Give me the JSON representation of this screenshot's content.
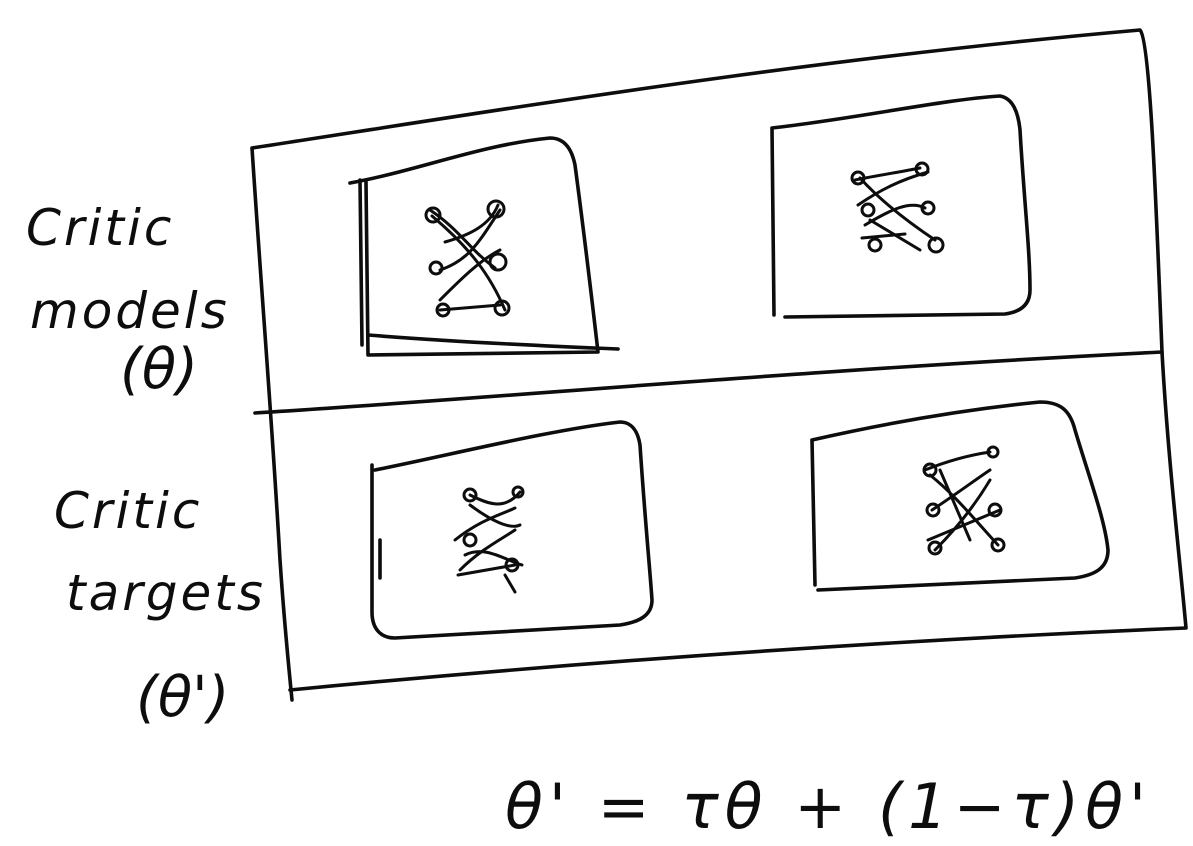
{
  "diagram": {
    "rows": [
      {
        "line1": "Critic",
        "line2": "models",
        "symbol": "(θ)"
      },
      {
        "line1": "Critic",
        "line2": "targets",
        "symbol": "(θ')"
      }
    ],
    "formula": "θ' = τθ + (1−τ)θ'"
  }
}
